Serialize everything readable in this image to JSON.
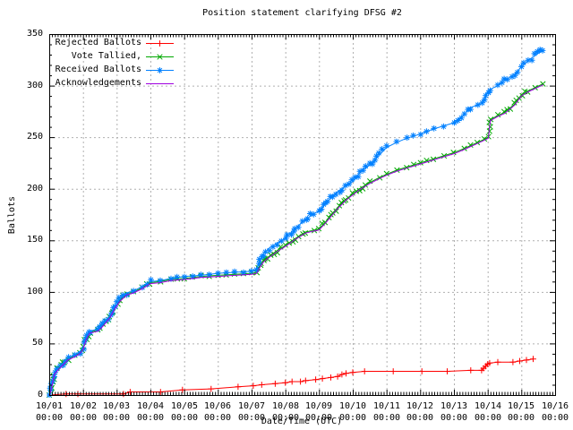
{
  "chart_data": {
    "type": "line",
    "title": "Position statement clarifying DFSG #2",
    "xlabel": "Date/Time (UTC)",
    "ylabel": "Ballots",
    "ylim": [
      0,
      350
    ],
    "ytick_interval": 50,
    "ytick_minor_interval": 10,
    "x_tick_dates": [
      "10/01",
      "10/02",
      "10/03",
      "10/04",
      "10/05",
      "10/06",
      "10/07",
      "10/08",
      "10/09",
      "10/10",
      "10/11",
      "10/12",
      "10/13",
      "10/14",
      "10/15",
      "10/16"
    ],
    "x_tick_time": "00:00",
    "x_range_days": [
      0,
      15
    ],
    "grid": true,
    "grid_color": "#b0b0b0",
    "legend_position": "top-left-inside",
    "series": [
      {
        "name": "Rejected Ballots",
        "color": "#ff0000",
        "marker": "plus",
        "points": [
          [
            0,
            0
          ],
          [
            0.5,
            1
          ],
          [
            0.85,
            1
          ],
          [
            2.2,
            1
          ],
          [
            2.4,
            3
          ],
          [
            3.3,
            3
          ],
          [
            3.95,
            5
          ],
          [
            4.8,
            6
          ],
          [
            5.6,
            8
          ],
          [
            6.05,
            9
          ],
          [
            6.3,
            10
          ],
          [
            6.7,
            11
          ],
          [
            7.0,
            12
          ],
          [
            7.2,
            13
          ],
          [
            7.45,
            13
          ],
          [
            7.6,
            14
          ],
          [
            7.9,
            15
          ],
          [
            8.1,
            16
          ],
          [
            8.35,
            17
          ],
          [
            8.55,
            18
          ],
          [
            8.68,
            20
          ],
          [
            8.8,
            21
          ],
          [
            9.0,
            22
          ],
          [
            9.35,
            23
          ],
          [
            10.2,
            23
          ],
          [
            11.05,
            23
          ],
          [
            11.8,
            23
          ],
          [
            12.5,
            24
          ],
          [
            12.82,
            24
          ],
          [
            12.88,
            26
          ],
          [
            12.94,
            28
          ],
          [
            13.0,
            30
          ],
          [
            13.06,
            31
          ],
          [
            13.3,
            32
          ],
          [
            13.75,
            32
          ],
          [
            13.95,
            33
          ],
          [
            14.15,
            34
          ],
          [
            14.35,
            35
          ]
        ]
      },
      {
        "name": "Vote Tallied,",
        "color": "#00a800",
        "marker": "cross",
        "points": [
          [
            0,
            0
          ],
          [
            0.05,
            5
          ],
          [
            0.1,
            13
          ],
          [
            0.15,
            21
          ],
          [
            0.25,
            25
          ],
          [
            0.4,
            30
          ],
          [
            0.55,
            35
          ],
          [
            0.75,
            38
          ],
          [
            0.9,
            41
          ],
          [
            1.0,
            45
          ],
          [
            1.1,
            55
          ],
          [
            1.2,
            61
          ],
          [
            1.45,
            63
          ],
          [
            1.6,
            68
          ],
          [
            1.8,
            76
          ],
          [
            1.95,
            85
          ],
          [
            2.1,
            92
          ],
          [
            2.3,
            98
          ],
          [
            2.5,
            100
          ],
          [
            2.75,
            104
          ],
          [
            3.0,
            109
          ],
          [
            3.3,
            110
          ],
          [
            3.6,
            112
          ],
          [
            4.0,
            113
          ],
          [
            4.5,
            115
          ],
          [
            5.0,
            116
          ],
          [
            5.5,
            117
          ],
          [
            6.0,
            118
          ],
          [
            6.15,
            119
          ],
          [
            6.25,
            125
          ],
          [
            6.35,
            130
          ],
          [
            6.5,
            134
          ],
          [
            6.75,
            140
          ],
          [
            7.0,
            145
          ],
          [
            7.3,
            152
          ],
          [
            7.6,
            158
          ],
          [
            7.85,
            160
          ],
          [
            8.0,
            161
          ],
          [
            8.2,
            168
          ],
          [
            8.5,
            180
          ],
          [
            8.8,
            190
          ],
          [
            9.0,
            195
          ],
          [
            9.2,
            200
          ],
          [
            9.5,
            206
          ],
          [
            9.8,
            211
          ],
          [
            10.0,
            214
          ],
          [
            10.3,
            218
          ],
          [
            10.6,
            221
          ],
          [
            11.0,
            225
          ],
          [
            11.4,
            229
          ],
          [
            11.7,
            232
          ],
          [
            12.0,
            235
          ],
          [
            12.3,
            239
          ],
          [
            12.5,
            242
          ],
          [
            12.7,
            245
          ],
          [
            12.9,
            248
          ],
          [
            13.02,
            250
          ],
          [
            13.08,
            267
          ],
          [
            13.3,
            271
          ],
          [
            13.5,
            274
          ],
          [
            13.8,
            282
          ],
          [
            14.0,
            291
          ],
          [
            14.2,
            295
          ],
          [
            14.4,
            298
          ],
          [
            14.65,
            302
          ]
        ]
      },
      {
        "name": "Received Ballots",
        "color": "#0080ff",
        "marker": "star",
        "points": [
          [
            0,
            0
          ],
          [
            0.05,
            6
          ],
          [
            0.1,
            14
          ],
          [
            0.15,
            22
          ],
          [
            0.25,
            26
          ],
          [
            0.4,
            31
          ],
          [
            0.55,
            36
          ],
          [
            0.75,
            39
          ],
          [
            0.9,
            42
          ],
          [
            1.0,
            46
          ],
          [
            1.1,
            56
          ],
          [
            1.2,
            62
          ],
          [
            1.45,
            64
          ],
          [
            1.6,
            69
          ],
          [
            1.8,
            77
          ],
          [
            1.95,
            86
          ],
          [
            2.1,
            93
          ],
          [
            2.3,
            99
          ],
          [
            2.5,
            101
          ],
          [
            2.75,
            105
          ],
          [
            3.0,
            110
          ],
          [
            3.3,
            111
          ],
          [
            3.6,
            113
          ],
          [
            4.0,
            115
          ],
          [
            4.5,
            116
          ],
          [
            5.0,
            118
          ],
          [
            5.5,
            119
          ],
          [
            6.0,
            120
          ],
          [
            6.15,
            122
          ],
          [
            6.25,
            130
          ],
          [
            6.35,
            137
          ],
          [
            6.5,
            142
          ],
          [
            6.75,
            147
          ],
          [
            7.0,
            152
          ],
          [
            7.3,
            162
          ],
          [
            7.6,
            170
          ],
          [
            7.85,
            176
          ],
          [
            8.0,
            178
          ],
          [
            8.2,
            186
          ],
          [
            8.5,
            196
          ],
          [
            8.8,
            203
          ],
          [
            9.0,
            207
          ],
          [
            9.2,
            215
          ],
          [
            9.5,
            223
          ],
          [
            9.8,
            233
          ],
          [
            10.0,
            240
          ],
          [
            10.3,
            245
          ],
          [
            10.6,
            249
          ],
          [
            11.0,
            253
          ],
          [
            11.4,
            258
          ],
          [
            11.7,
            261
          ],
          [
            12.0,
            264
          ],
          [
            12.3,
            272
          ],
          [
            12.5,
            279
          ],
          [
            12.7,
            281
          ],
          [
            12.85,
            283
          ],
          [
            12.95,
            291
          ],
          [
            13.05,
            296
          ],
          [
            13.3,
            300
          ],
          [
            13.5,
            305
          ],
          [
            13.8,
            311
          ],
          [
            14.0,
            318
          ],
          [
            14.2,
            324
          ],
          [
            14.4,
            329
          ],
          [
            14.65,
            335
          ]
        ]
      },
      {
        "name": "Acknowledgements",
        "color": "#a000e0",
        "marker": "none",
        "points": [
          [
            0,
            0
          ],
          [
            0.05,
            4
          ],
          [
            0.1,
            12
          ],
          [
            0.15,
            20
          ],
          [
            0.25,
            24
          ],
          [
            0.4,
            29
          ],
          [
            0.55,
            34
          ],
          [
            0.75,
            37
          ],
          [
            0.9,
            40
          ],
          [
            1.0,
            44
          ],
          [
            1.1,
            54
          ],
          [
            1.2,
            60
          ],
          [
            1.45,
            62
          ],
          [
            1.6,
            67
          ],
          [
            1.8,
            75
          ],
          [
            1.95,
            84
          ],
          [
            2.1,
            91
          ],
          [
            2.3,
            97
          ],
          [
            2.5,
            99
          ],
          [
            2.75,
            103
          ],
          [
            3.0,
            108
          ],
          [
            3.3,
            109
          ],
          [
            3.6,
            111
          ],
          [
            4.0,
            112
          ],
          [
            4.5,
            114
          ],
          [
            5.0,
            115
          ],
          [
            5.5,
            116
          ],
          [
            6.0,
            117
          ],
          [
            6.15,
            118
          ],
          [
            6.25,
            124
          ],
          [
            6.35,
            129
          ],
          [
            6.5,
            133
          ],
          [
            6.75,
            139
          ],
          [
            7.0,
            144
          ],
          [
            7.3,
            151
          ],
          [
            7.6,
            157
          ],
          [
            7.85,
            159
          ],
          [
            8.0,
            160
          ],
          [
            8.2,
            167
          ],
          [
            8.5,
            179
          ],
          [
            8.8,
            189
          ],
          [
            9.0,
            194
          ],
          [
            9.2,
            199
          ],
          [
            9.5,
            205
          ],
          [
            9.8,
            210
          ],
          [
            10.0,
            213
          ],
          [
            10.3,
            217
          ],
          [
            10.6,
            220
          ],
          [
            11.0,
            224
          ],
          [
            11.4,
            228
          ],
          [
            11.7,
            231
          ],
          [
            12.0,
            234
          ],
          [
            12.3,
            238
          ],
          [
            12.5,
            241
          ],
          [
            12.7,
            244
          ],
          [
            12.9,
            247
          ],
          [
            13.02,
            249
          ],
          [
            13.08,
            266
          ],
          [
            13.3,
            270
          ],
          [
            13.5,
            273
          ],
          [
            13.8,
            281
          ],
          [
            14.0,
            290
          ],
          [
            14.2,
            294
          ],
          [
            14.4,
            297
          ],
          [
            14.65,
            301
          ]
        ]
      }
    ]
  }
}
